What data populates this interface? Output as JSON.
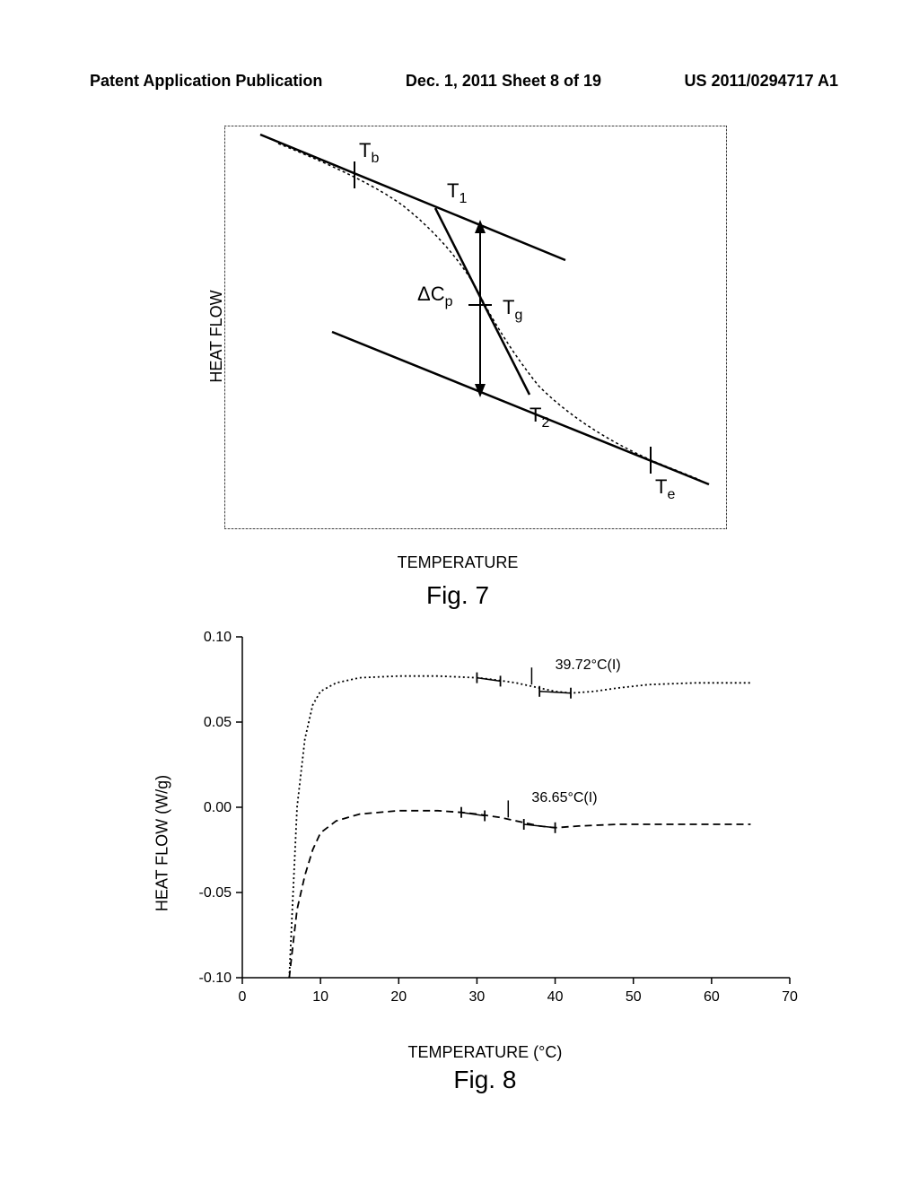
{
  "header": {
    "left": "Patent Application Publication",
    "center": "Dec. 1, 2011  Sheet 8 of 19",
    "right": "US 2011/0294717 A1"
  },
  "fig7": {
    "ylabel": "HEAT FLOW",
    "xlabel": "TEMPERATURE",
    "caption": "Fig. 7",
    "labels": {
      "Tb": "T",
      "Tb_sub": "b",
      "T1": "T",
      "T1_sub": "1",
      "T2": "T",
      "T2_sub": "2",
      "Te": "T",
      "Te_sub": "e",
      "Tg": "T",
      "Tg_sub": "g",
      "dCp": "ΔC",
      "dCp_sub": "p"
    },
    "colors": {
      "line": "#000000",
      "border": "#000000",
      "bg": "#ffffff"
    }
  },
  "fig8": {
    "ylabel": "HEAT FLOW (W/g)",
    "xlabel": "TEMPERATURE (°C)",
    "caption": "Fig. 8",
    "xlim": [
      0,
      70
    ],
    "ylim": [
      -0.1,
      0.1
    ],
    "xtick_step": 10,
    "ytick_step": 0.05,
    "xticks": [
      "0",
      "10",
      "20",
      "30",
      "40",
      "50",
      "60",
      "70"
    ],
    "yticks": [
      "-0.10",
      "-0.05",
      "0.00",
      "0.05",
      "0.10"
    ],
    "annotations": {
      "upper": "39.72°C(I)",
      "lower": "36.65°C(I)"
    },
    "curves": {
      "upper": {
        "style": "dotted",
        "color": "#000000",
        "points_x": [
          6,
          6.5,
          7,
          8,
          9,
          10,
          12,
          15,
          20,
          25,
          30,
          32,
          35,
          38,
          40,
          42,
          45,
          48,
          52,
          58,
          65
        ],
        "points_y": [
          -0.1,
          -0.05,
          0.0,
          0.04,
          0.06,
          0.068,
          0.073,
          0.076,
          0.077,
          0.077,
          0.076,
          0.075,
          0.073,
          0.07,
          0.068,
          0.067,
          0.068,
          0.07,
          0.072,
          0.073,
          0.073
        ],
        "tg_marks_x": [
          30,
          33,
          38,
          42
        ],
        "tg_marks_y": [
          0.076,
          0.074,
          0.068,
          0.067
        ]
      },
      "lower": {
        "style": "dashed",
        "color": "#000000",
        "points_x": [
          6,
          6.5,
          7,
          8,
          9,
          10,
          12,
          15,
          20,
          25,
          28,
          30,
          33,
          36,
          38,
          40,
          43,
          48,
          55,
          62,
          65
        ],
        "points_y": [
          -0.1,
          -0.08,
          -0.06,
          -0.04,
          -0.025,
          -0.015,
          -0.008,
          -0.004,
          -0.002,
          -0.002,
          -0.003,
          -0.004,
          -0.006,
          -0.009,
          -0.011,
          -0.012,
          -0.011,
          -0.01,
          -0.01,
          -0.01,
          -0.01
        ],
        "tg_marks_x": [
          28,
          31,
          36,
          40
        ],
        "tg_marks_y": [
          -0.003,
          -0.005,
          -0.01,
          -0.012
        ]
      }
    },
    "colors": {
      "axis": "#000000",
      "bg": "#ffffff"
    }
  }
}
